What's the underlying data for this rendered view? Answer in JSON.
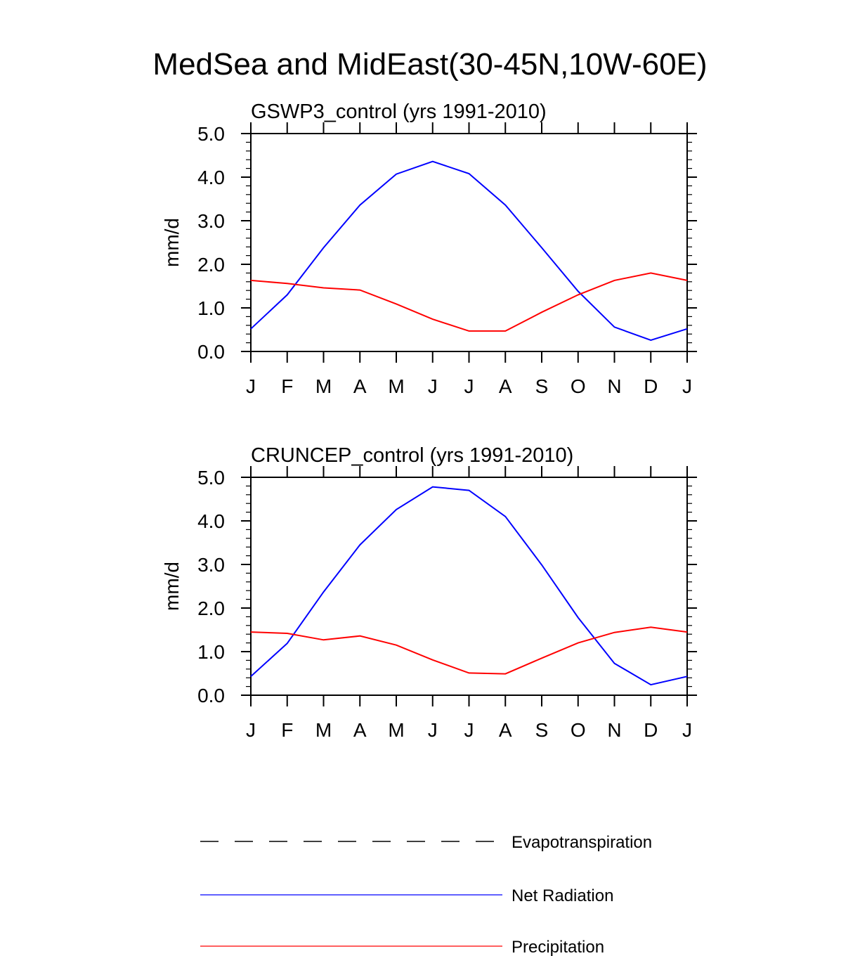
{
  "figure_title": "MedSea and MidEast(30-45N,10W-60E)",
  "colors": {
    "net_radiation": "#0000ff",
    "precipitation": "#ff0000",
    "evapotranspiration": "#000000",
    "axes": "#000000"
  },
  "legend": {
    "items": [
      {
        "label": "Evapotranspiration",
        "style": "dashed",
        "color": "#000000"
      },
      {
        "label": "Net Radiation",
        "style": "solid",
        "color": "#0000ff"
      },
      {
        "label": "Precipitation",
        "style": "solid",
        "color": "#ff0000"
      }
    ]
  },
  "chart_data": [
    {
      "type": "line",
      "title": "GSWP3_control (yrs 1991-2010)",
      "xlabel": "",
      "ylabel": "mm/d",
      "categories": [
        "J",
        "F",
        "M",
        "A",
        "M",
        "J",
        "J",
        "A",
        "S",
        "O",
        "N",
        "D",
        "J"
      ],
      "ylim": [
        0,
        5
      ],
      "yticks": [
        "0.0",
        "1.0",
        "2.0",
        "3.0",
        "4.0",
        "5.0"
      ],
      "grid": false,
      "series": [
        {
          "name": "Net Radiation",
          "color": "#0000ff",
          "values": [
            0.52,
            1.3,
            2.38,
            3.36,
            4.07,
            4.36,
            4.08,
            3.36,
            2.38,
            1.38,
            0.56,
            0.26,
            0.52
          ]
        },
        {
          "name": "Precipitation",
          "color": "#ff0000",
          "values": [
            1.63,
            1.56,
            1.46,
            1.41,
            1.09,
            0.74,
            0.47,
            0.47,
            0.9,
            1.3,
            1.63,
            1.8,
            1.63
          ]
        }
      ]
    },
    {
      "type": "line",
      "title": "CRUNCEP_control (yrs 1991-2010)",
      "xlabel": "",
      "ylabel": "mm/d",
      "categories": [
        "J",
        "F",
        "M",
        "A",
        "M",
        "J",
        "J",
        "A",
        "S",
        "O",
        "N",
        "D",
        "J"
      ],
      "ylim": [
        0,
        5
      ],
      "yticks": [
        "0.0",
        "1.0",
        "2.0",
        "3.0",
        "4.0",
        "5.0"
      ],
      "grid": false,
      "series": [
        {
          "name": "Net Radiation",
          "color": "#0000ff",
          "values": [
            0.43,
            1.19,
            2.37,
            3.45,
            4.26,
            4.78,
            4.7,
            4.1,
            2.99,
            1.78,
            0.73,
            0.24,
            0.43
          ]
        },
        {
          "name": "Precipitation",
          "color": "#ff0000",
          "values": [
            1.45,
            1.42,
            1.27,
            1.36,
            1.15,
            0.81,
            0.51,
            0.49,
            0.85,
            1.2,
            1.44,
            1.56,
            1.45
          ]
        }
      ]
    }
  ]
}
